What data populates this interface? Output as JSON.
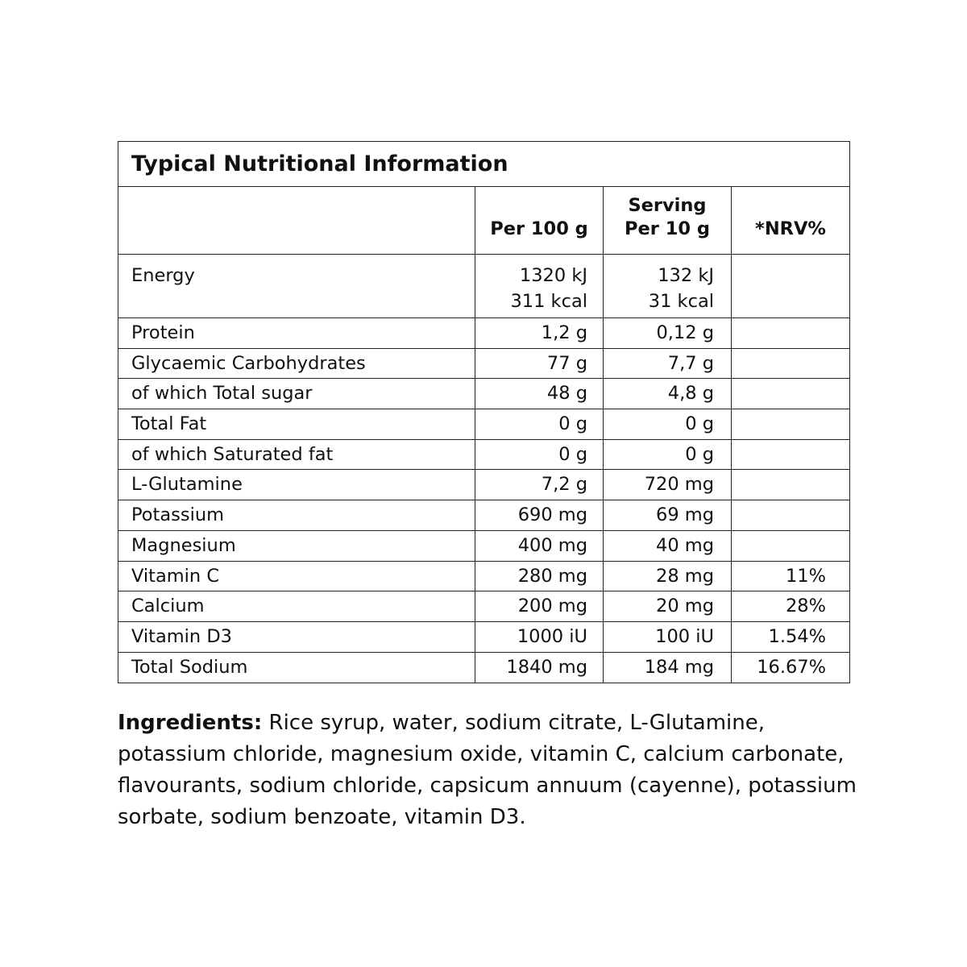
{
  "table": {
    "title": "Typical Nutritional Information",
    "headers": {
      "col1": "Per 100 g",
      "col2_line1": "Serving",
      "col2_line2": "Per 10 g",
      "col3": "*NRV%"
    },
    "energy": {
      "label": "Energy",
      "per100_kj": "1320 kJ",
      "per100_kcal": "311 kcal",
      "serving_kj": "132 kJ",
      "serving_kcal": "31 kcal",
      "nrv": ""
    },
    "rows": [
      {
        "label": "Protein",
        "per100": "1,2 g",
        "serving": "0,12 g",
        "nrv": ""
      },
      {
        "label": "Glycaemic Carbohydrates",
        "per100": "77 g",
        "serving": "7,7 g",
        "nrv": ""
      },
      {
        "label": "of which Total sugar",
        "per100": "48 g",
        "serving": "4,8 g",
        "nrv": ""
      },
      {
        "label": "Total Fat",
        "per100": "0 g",
        "serving": "0 g",
        "nrv": ""
      },
      {
        "label": "of which Saturated fat",
        "per100": "0 g",
        "serving": "0 g",
        "nrv": ""
      },
      {
        "label": "L-Glutamine",
        "per100": "7,2 g",
        "serving": "720 mg",
        "nrv": ""
      },
      {
        "label": "Potassium",
        "per100": "690 mg",
        "serving": "69 mg",
        "nrv": ""
      },
      {
        "label": "Magnesium",
        "per100": "400 mg",
        "serving": "40 mg",
        "nrv": ""
      },
      {
        "label": "Vitamin C",
        "per100": "280 mg",
        "serving": "28 mg",
        "nrv": "11%"
      },
      {
        "label": "Calcium",
        "per100": "200 mg",
        "serving": "20 mg",
        "nrv": "28%"
      },
      {
        "label": "Vitamin D3",
        "per100": "1000 iU",
        "serving": "100 iU",
        "nrv": "1.54%"
      },
      {
        "label": "Total Sodium",
        "per100": "1840 mg",
        "serving": "184 mg",
        "nrv": "16.67%"
      }
    ]
  },
  "ingredients": {
    "label": "Ingredients:",
    "text": "Rice syrup, water, sodium citrate, L-Glutamine, potassium chloride, magnesium oxide, vitamin C, calcium carbonate, flavourants, sodium chloride, capsicum annuum (cayenne), potassium sorbate, sodium benzoate, vitamin D3."
  }
}
